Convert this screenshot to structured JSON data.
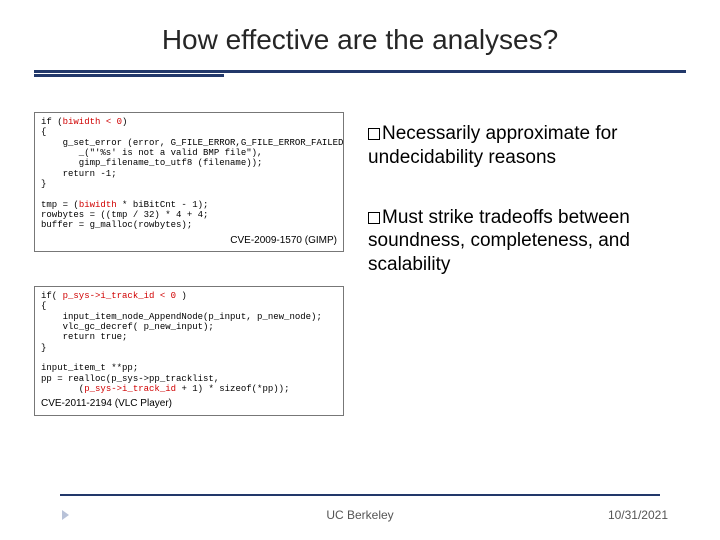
{
  "title": "How effective are the analyses?",
  "colors": {
    "rule": "#22386a",
    "code_highlight": "#d00000",
    "footer_arrow": "#b8c2d8",
    "background": "#ffffff",
    "text": "#000000"
  },
  "code1": {
    "line1_pre": "if (",
    "line1_hl": "biwidth < 0",
    "line1_post": ")",
    "line2": "{",
    "line3": "    g_set_error (error, G_FILE_ERROR,G_FILE_ERROR_FAILED,",
    "line4": "       _(\"'%s' is not a valid BMP file\"),",
    "line5": "       gimp_filename_to_utf8 (filename));",
    "line6": "    return -1;",
    "line7": "}",
    "line8_pre": "tmp = (",
    "line8_hl": "biwidth",
    "line8_post": " * biBitCnt - 1);",
    "line9": "rowbytes = ((tmp / 32) * 4 + 4;",
    "line10": "buffer = g_malloc(rowbytes);",
    "cve": "CVE-2009-1570 (GIMP)"
  },
  "code2": {
    "line1_pre": "if( ",
    "line1_hl": "p_sys->i_track_id < 0",
    "line1_post": " )",
    "line2": "{",
    "line3": "    input_item_node_AppendNode(p_input, p_new_node);",
    "line4": "    vlc_gc_decref( p_new_input);",
    "line5": "    return true;",
    "line6": "}",
    "line7": "input_item_t **pp;",
    "line8": "pp = realloc(p_sys->pp_tracklist,",
    "line9_pre": "       (",
    "line9_hl": "p_sys->i_track_id",
    "line9_post": " + 1) * sizeof(*pp));",
    "cve": "CVE-2011-2194 (VLC Player)"
  },
  "bullets": [
    {
      "first": "Necessarily",
      "rest": " approximate for undecidability reasons"
    },
    {
      "first": "Must",
      "rest": " strike tradeoffs between soundness, completeness, and scalability"
    }
  ],
  "footer": {
    "center": "UC Berkeley",
    "right": "10/31/2021"
  }
}
